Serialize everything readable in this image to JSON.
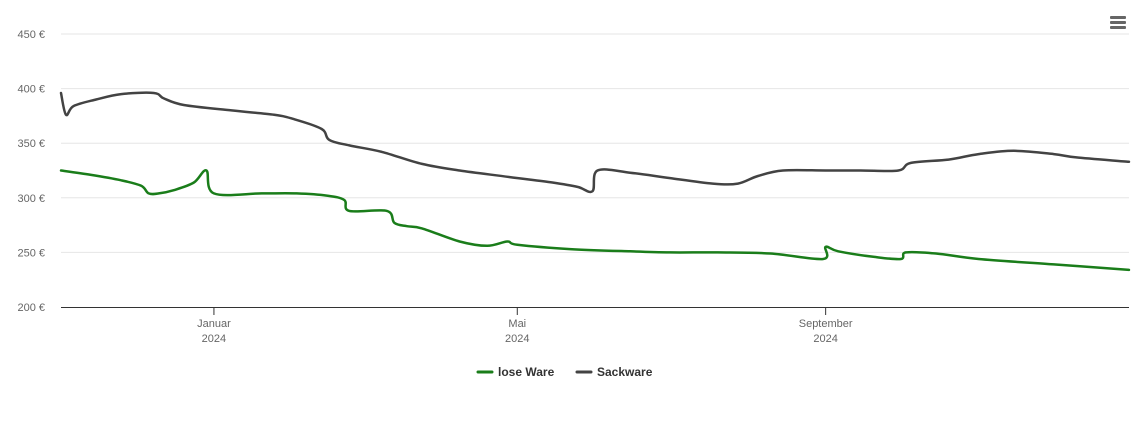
{
  "colors": {
    "lose_ware": "#1a7d1a",
    "sackware": "#434343",
    "grid": "#e6e6e6",
    "axis": "#333333"
  },
  "menu": {
    "icon": "hamburger-menu-icon"
  },
  "chart_data": {
    "type": "line",
    "x_type": "date",
    "xlim": [
      "2023-11-01",
      "2024-12-31"
    ],
    "ylim": [
      200,
      450
    ],
    "y_ticks": [
      {
        "value": 200,
        "label": "200 €"
      },
      {
        "value": 250,
        "label": "250 €"
      },
      {
        "value": 300,
        "label": "300 €"
      },
      {
        "value": 350,
        "label": "350 €"
      },
      {
        "value": 400,
        "label": "400 €"
      },
      {
        "value": 450,
        "label": "450 €"
      }
    ],
    "x_ticks": [
      {
        "date": "2024-01-01",
        "label": "Januar",
        "sublabel": "2024"
      },
      {
        "date": "2024-05-01",
        "label": "Mai",
        "sublabel": "2024"
      },
      {
        "date": "2024-09-01",
        "label": "September",
        "sublabel": "2024"
      }
    ],
    "grid": "horizontal",
    "legend": "bottom-center",
    "series": [
      {
        "name": "lose Ware",
        "color": "#1a7d1a",
        "points": [
          [
            "2023-11-01",
            325
          ],
          [
            "2023-11-13",
            321
          ],
          [
            "2023-11-25",
            316
          ],
          [
            "2023-12-03",
            311
          ],
          [
            "2023-12-06",
            304
          ],
          [
            "2023-12-10",
            304
          ],
          [
            "2023-12-16",
            307
          ],
          [
            "2023-12-24",
            314
          ],
          [
            "2023-12-29",
            325
          ],
          [
            "2024-01-01",
            304
          ],
          [
            "2024-01-20",
            304
          ],
          [
            "2024-02-03",
            304
          ],
          [
            "2024-02-15",
            302
          ],
          [
            "2024-02-22",
            298
          ],
          [
            "2024-02-24",
            288
          ],
          [
            "2024-03-10",
            288
          ],
          [
            "2024-03-13",
            277
          ],
          [
            "2024-03-18",
            274
          ],
          [
            "2024-03-24",
            272
          ],
          [
            "2024-04-08",
            260
          ],
          [
            "2024-04-19",
            256
          ],
          [
            "2024-04-27",
            260
          ],
          [
            "2024-05-01",
            257
          ],
          [
            "2024-05-22",
            253
          ],
          [
            "2024-06-15",
            251
          ],
          [
            "2024-07-01",
            250
          ],
          [
            "2024-07-20",
            250
          ],
          [
            "2024-08-10",
            249
          ],
          [
            "2024-08-31",
            244
          ],
          [
            "2024-09-01",
            255
          ],
          [
            "2024-09-06",
            251
          ],
          [
            "2024-09-20",
            246
          ],
          [
            "2024-10-01",
            244
          ],
          [
            "2024-10-03",
            250
          ],
          [
            "2024-10-15",
            249
          ],
          [
            "2024-11-01",
            244
          ],
          [
            "2024-12-01",
            239
          ],
          [
            "2024-12-31",
            234
          ]
        ]
      },
      {
        "name": "Sackware",
        "color": "#434343",
        "points": [
          [
            "2023-11-01",
            396
          ],
          [
            "2023-11-03",
            376
          ],
          [
            "2023-11-06",
            384
          ],
          [
            "2023-11-15",
            390
          ],
          [
            "2023-11-25",
            395
          ],
          [
            "2023-12-08",
            396
          ],
          [
            "2023-12-12",
            391
          ],
          [
            "2023-12-20",
            385
          ],
          [
            "2024-01-08",
            380
          ],
          [
            "2024-01-25",
            376
          ],
          [
            "2024-02-02",
            372
          ],
          [
            "2024-02-13",
            363
          ],
          [
            "2024-02-16",
            353
          ],
          [
            "2024-02-24",
            348
          ],
          [
            "2024-03-08",
            342
          ],
          [
            "2024-03-24",
            331
          ],
          [
            "2024-04-08",
            325
          ],
          [
            "2024-04-28",
            319
          ],
          [
            "2024-05-15",
            314
          ],
          [
            "2024-05-25",
            310
          ],
          [
            "2024-05-31",
            306
          ],
          [
            "2024-06-02",
            325
          ],
          [
            "2024-06-15",
            323
          ],
          [
            "2024-07-01",
            318
          ],
          [
            "2024-07-18",
            313
          ],
          [
            "2024-07-28",
            313
          ],
          [
            "2024-08-05",
            320
          ],
          [
            "2024-08-15",
            325
          ],
          [
            "2024-09-01",
            325
          ],
          [
            "2024-09-15",
            325
          ],
          [
            "2024-09-30",
            325
          ],
          [
            "2024-10-05",
            332
          ],
          [
            "2024-10-20",
            335
          ],
          [
            "2024-11-01",
            340
          ],
          [
            "2024-11-15",
            343
          ],
          [
            "2024-12-01",
            340
          ],
          [
            "2024-12-10",
            337
          ],
          [
            "2024-12-31",
            333
          ]
        ]
      }
    ]
  }
}
